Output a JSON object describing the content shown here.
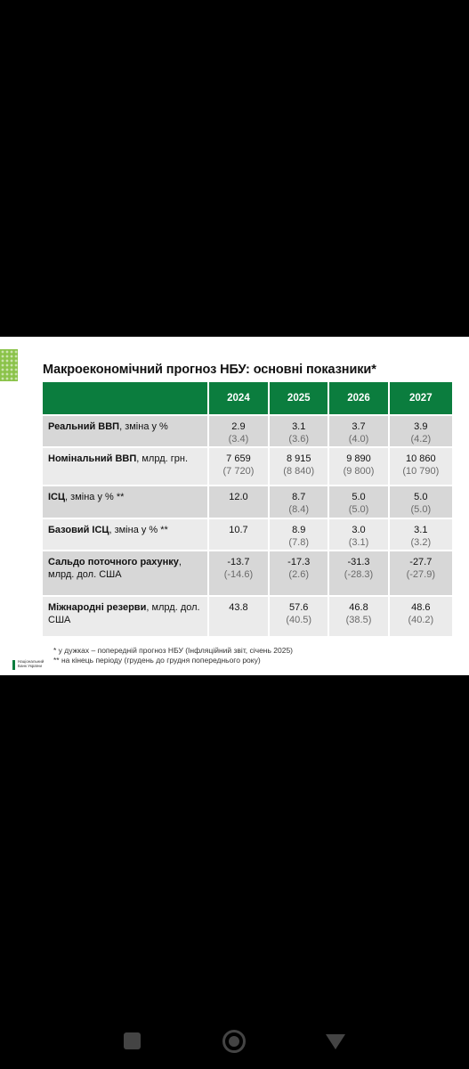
{
  "slide": {
    "title": "Макроекономічний прогноз НБУ: основні показники*",
    "years": [
      "2024",
      "2025",
      "2026",
      "2027"
    ],
    "rows": [
      {
        "label_bold": "Реальний ВВП",
        "label_rest": ", зміна у %",
        "values": [
          {
            "main": "2.9",
            "prev": "(3.4)"
          },
          {
            "main": "3.1",
            "prev": "(3.6)"
          },
          {
            "main": "3.7",
            "prev": "(4.0)"
          },
          {
            "main": "3.9",
            "prev": "(4.2)"
          }
        ]
      },
      {
        "label_bold": "Номінальний ВВП",
        "label_rest": ", млрд. грн.",
        "values": [
          {
            "main": "7 659",
            "prev": "(7 720)"
          },
          {
            "main": "8 915",
            "prev": "(8 840)"
          },
          {
            "main": "9 890",
            "prev": "(9 800)"
          },
          {
            "main": "10 860",
            "prev": "(10 790)"
          }
        ]
      },
      {
        "label_bold": "ІСЦ",
        "label_rest": ", зміна у % **",
        "values": [
          {
            "main": "12.0",
            "prev": ""
          },
          {
            "main": "8.7",
            "prev": "(8.4)"
          },
          {
            "main": "5.0",
            "prev": "(5.0)"
          },
          {
            "main": "5.0",
            "prev": "(5.0)"
          }
        ]
      },
      {
        "label_bold": "Базовий ІСЦ",
        "label_rest": ", зміна у % **",
        "values": [
          {
            "main": "10.7",
            "prev": ""
          },
          {
            "main": "8.9",
            "prev": "(7.8)"
          },
          {
            "main": "3.0",
            "prev": "(3.1)"
          },
          {
            "main": "3.1",
            "prev": "(3.2)"
          }
        ]
      },
      {
        "label_bold": "Сальдо поточного рахунку",
        "label_rest": ", млрд. дол. США",
        "values": [
          {
            "main": "-13.7",
            "prev": "(-14.6)"
          },
          {
            "main": "-17.3",
            "prev": "(2.6)"
          },
          {
            "main": "-31.3",
            "prev": "(-28.3)"
          },
          {
            "main": "-27.7",
            "prev": "(-27.9)"
          }
        ]
      },
      {
        "label_bold": "Міжнародні резерви",
        "label_rest": ", млрд. дол. США",
        "values": [
          {
            "main": "43.8",
            "prev": ""
          },
          {
            "main": "57.6",
            "prev": "(40.5)"
          },
          {
            "main": "46.8",
            "prev": "(38.5)"
          },
          {
            "main": "48.6",
            "prev": "(40.2)"
          }
        ]
      }
    ],
    "footnote1": "* у дужках – попередній прогноз НБУ (Інфляційний звіт, січень 2025)",
    "footnote2": "** на кінець періоду (грудень до грудня попереднього року)",
    "logo_line1": "Національний",
    "logo_line2": "Банк України"
  },
  "colors": {
    "header": "#0b7d3e",
    "row_dark": "#d7d7d7",
    "row_light": "#ebebeb"
  },
  "navbar": {
    "recents": "recents-icon",
    "home": "home-icon",
    "back": "back-icon"
  }
}
